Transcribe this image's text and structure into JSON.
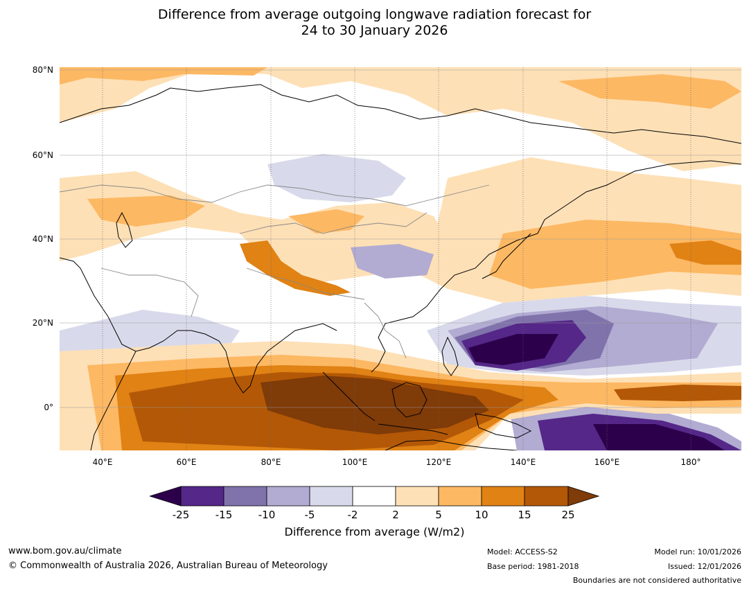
{
  "title": {
    "line1": "Difference from average outgoing longwave radiation forecast for",
    "line2": "24 to 30 January 2026"
  },
  "map": {
    "lat_labels": [
      "80°N",
      "60°N",
      "40°N",
      "20°N",
      "0°"
    ],
    "lon_labels": [
      "40°E",
      "60°E",
      "80°E",
      "100°E",
      "120°E",
      "140°E",
      "160°E",
      "180°"
    ],
    "colors": {
      "lt_-25": "#2d004b",
      "-25_-15": "#542788",
      "-15_-10": "#8073ac",
      "-10_-5": "#b2abd2",
      "-5_-2": "#d8daeb",
      "-2_2": "#ffffff",
      "2_5": "#fee0b6",
      "5_10": "#fdb863",
      "10_15": "#e08214",
      "15_25": "#b35806",
      "gt_25": "#7f3b08"
    }
  },
  "colorbar": {
    "ticks": [
      "-25",
      "-15",
      "-10",
      "-5",
      "-2",
      "2",
      "5",
      "10",
      "15",
      "25"
    ],
    "label": "Difference from average (W/m2)"
  },
  "footer": {
    "url": "www.bom.gov.au/climate",
    "copyright": "© Commonwealth of Australia 2026, Australian Bureau of Meteorology",
    "model": "Model: ACCESS-S2",
    "base_period": "Base period: 1981-2018",
    "model_run": "Model run: 10/01/2026",
    "issued": "Issued: 12/01/2026",
    "disclaimer": "Boundaries are not considered authoritative"
  }
}
